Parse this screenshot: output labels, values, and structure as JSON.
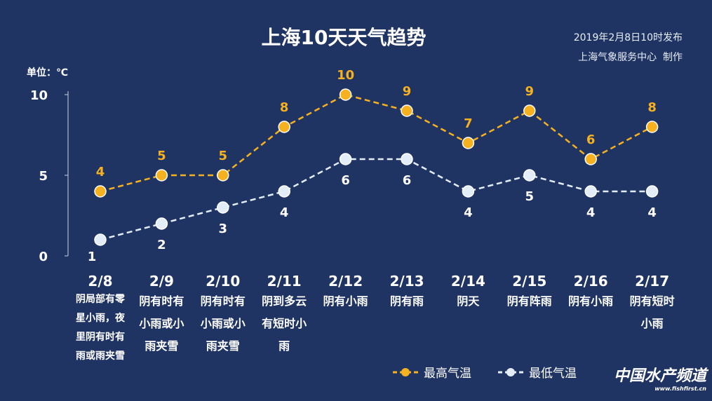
{
  "header": {
    "title": "上海10天天气趋势",
    "published": "2019年2月8日10时发布",
    "producer": "上海气象服务中心  制作",
    "unit": "单位：℃"
  },
  "colors": {
    "background": "#203463",
    "high": "#f5b120",
    "low": "#e3edf8"
  },
  "chart_data": {
    "type": "line",
    "categories": [
      "2/8",
      "2/9",
      "2/10",
      "2/11",
      "2/12",
      "2/13",
      "2/14",
      "2/15",
      "2/16",
      "2/17"
    ],
    "weather": [
      "阴局部有零星小雨，夜里阴有时有雨或雨夹雪",
      "阴有时有小雨或小雨夹雪",
      "阴有时有小雨或小雨夹雪",
      "阴到多云有短时小雨",
      "阴有小雨",
      "阴有雨",
      "阴天",
      "阴有阵雨",
      "阴有小雨",
      "阴有短时小雨"
    ],
    "series": [
      {
        "name": "最高气温",
        "values": [
          4,
          5,
          5,
          8,
          10,
          9,
          7,
          9,
          6,
          8
        ],
        "color": "#f5b120"
      },
      {
        "name": "最低气温",
        "values": [
          1,
          2,
          3,
          4,
          6,
          6,
          4,
          5,
          4,
          4
        ],
        "color": "#e3edf8"
      }
    ],
    "yticks": [
      "0",
      "5",
      "10"
    ],
    "ylim": [
      0,
      10
    ],
    "grid": false,
    "legend": "bottom-right"
  },
  "watermark": {
    "name": "中国水产频道",
    "url": "www.fishfirst.cn"
  }
}
